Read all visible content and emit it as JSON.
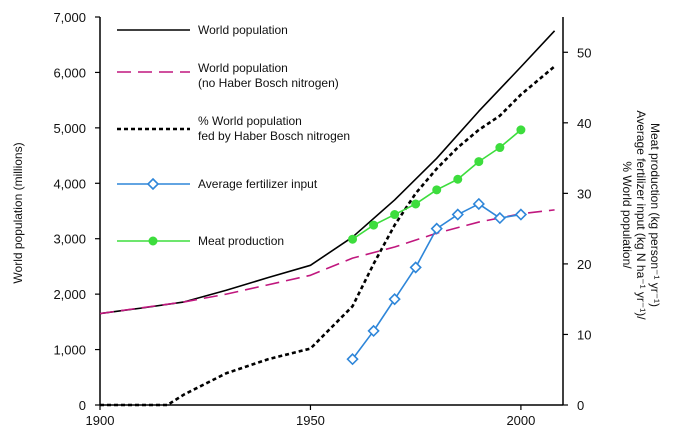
{
  "chart_data": {
    "type": "line",
    "title": "",
    "xlabel": "",
    "ylabel_left": "World population (millions)",
    "ylabel_right_lines": [
      "% World population/",
      "Average fertilizer input (kg N ha⁻¹ yr⁻¹)/",
      "Meat production (kg person⁻¹ yr⁻¹)"
    ],
    "xlim": [
      1900,
      2010
    ],
    "ylim_left": [
      0,
      7000
    ],
    "ylim_right": [
      0,
      55
    ],
    "x_ticks": [
      1900,
      1950,
      2000
    ],
    "y_ticks_left": [
      {
        "value": 0,
        "label": "0"
      },
      {
        "value": 1000,
        "label": "1,000"
      },
      {
        "value": 2000,
        "label": "2,000"
      },
      {
        "value": 3000,
        "label": "3,000"
      },
      {
        "value": 4000,
        "label": "4,000"
      },
      {
        "value": 5000,
        "label": "5,000"
      },
      {
        "value": 6000,
        "label": "6,000"
      },
      {
        "value": 7000,
        "label": "7,000"
      }
    ],
    "y_ticks_right": [
      0,
      10,
      20,
      30,
      40,
      50
    ],
    "grid": false,
    "legend_position": "top-left",
    "series": [
      {
        "name": "World population",
        "axis": "left",
        "style": "solid",
        "color": "#000000",
        "marker": "none",
        "x": [
          1900,
          1910,
          1920,
          1930,
          1940,
          1950,
          1960,
          1970,
          1980,
          1990,
          2000,
          2008
        ],
        "y": [
          1650,
          1750,
          1860,
          2070,
          2300,
          2520,
          3030,
          3700,
          4450,
          5300,
          6100,
          6750
        ]
      },
      {
        "name": "World population\n(no Haber Bosch nitrogen)",
        "axis": "left",
        "style": "dashed",
        "color": "#c0177e",
        "marker": "none",
        "x": [
          1900,
          1920,
          1930,
          1940,
          1950,
          1960,
          1970,
          1980,
          1990,
          2000,
          2008
        ],
        "y": [
          1650,
          1860,
          2000,
          2170,
          2340,
          2650,
          2850,
          3100,
          3300,
          3450,
          3520
        ]
      },
      {
        "name": "% World population\nfed by Haber Bosch nitrogen",
        "axis": "right",
        "style": "dotted",
        "color": "#000000",
        "marker": "none",
        "x": [
          1900,
          1910,
          1916,
          1920,
          1930,
          1940,
          1950,
          1955,
          1960,
          1965,
          1970,
          1975,
          1980,
          1985,
          1990,
          1995,
          2000,
          2008
        ],
        "y": [
          0,
          0,
          0,
          1.5,
          4.5,
          6.5,
          8,
          11,
          14,
          20,
          25.5,
          30,
          33.5,
          36.5,
          39,
          41,
          44,
          48
        ]
      },
      {
        "name": "Average fertilizer input",
        "axis": "right",
        "style": "solid",
        "color": "#2e86d9",
        "marker": "open-diamond",
        "x": [
          1960,
          1965,
          1970,
          1975,
          1980,
          1985,
          1990,
          1995,
          2000
        ],
        "y": [
          6.5,
          10.5,
          15,
          19.5,
          25,
          27,
          28.5,
          26.5,
          27
        ]
      },
      {
        "name": "Meat production",
        "axis": "right",
        "style": "solid",
        "color": "#3ddd3d",
        "marker": "filled-circle",
        "x": [
          1960,
          1965,
          1970,
          1975,
          1980,
          1985,
          1990,
          1995,
          2000
        ],
        "y": [
          23.5,
          25.5,
          27,
          28.5,
          30.5,
          32,
          34.5,
          36.5,
          39
        ]
      }
    ]
  }
}
